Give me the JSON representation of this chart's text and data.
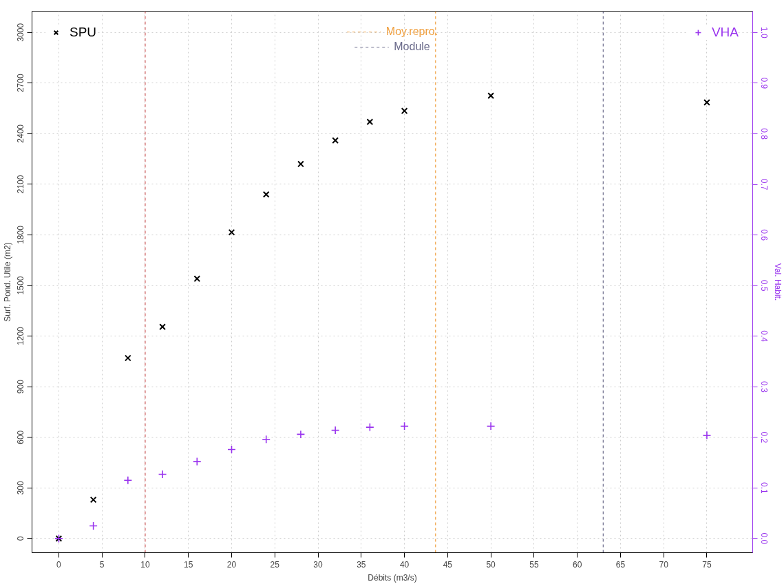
{
  "chart_data": {
    "type": "scatter",
    "xlabel": "Débits (m3/s)",
    "ylabel": "Surf. Pond. Utile (m2)",
    "y2label": "Val. Habit.",
    "x": [
      0,
      4,
      8,
      12,
      16,
      20,
      24,
      28,
      32,
      36,
      40,
      50,
      75
    ],
    "series": [
      {
        "name": "SPU",
        "color": "#000000",
        "marker": "x",
        "values": [
          0,
          230,
          1070,
          1255,
          1540,
          1815,
          2040,
          2220,
          2360,
          2470,
          2535,
          2625,
          2585
        ]
      },
      {
        "name": "VHA",
        "color": "#9933ee",
        "marker": "cross",
        "axis": "y2",
        "values": [
          0,
          0.025,
          0.115,
          0.127,
          0.152,
          0.176,
          0.196,
          0.206,
          0.214,
          0.22,
          0.222,
          0.222,
          0.204
        ]
      }
    ],
    "xlim": [
      -3.1,
      80.3
    ],
    "ylim": [
      -84,
      3125
    ],
    "y2lim": [
      -0.028,
      1.042
    ],
    "xticks": [
      0,
      5,
      10,
      15,
      20,
      25,
      30,
      35,
      40,
      45,
      50,
      55,
      60,
      65,
      70,
      75
    ],
    "yticks": [
      0,
      300,
      600,
      900,
      1200,
      1500,
      1800,
      2100,
      2400,
      2700,
      3000
    ],
    "y2ticks": [
      {
        "value": 0,
        "label": "0.0"
      },
      0.1,
      0.2,
      0.3,
      0.4,
      0.5,
      0.6,
      0.7,
      0.8,
      0.9,
      {
        "value": 1,
        "label": "1.0"
      }
    ],
    "ref_lines": [
      {
        "axis": "x",
        "value": 10,
        "color": "#cd5c5c",
        "line_style": "dashed"
      },
      {
        "axis": "x",
        "value": 43.6,
        "label": "Moy.repro.",
        "color": "#f0a040",
        "line_style": "dashed"
      },
      {
        "axis": "x",
        "value": 63,
        "label": "Module",
        "color": "#6a6a8a",
        "line_style": "dashed"
      }
    ],
    "grid": true,
    "legend": "top"
  }
}
